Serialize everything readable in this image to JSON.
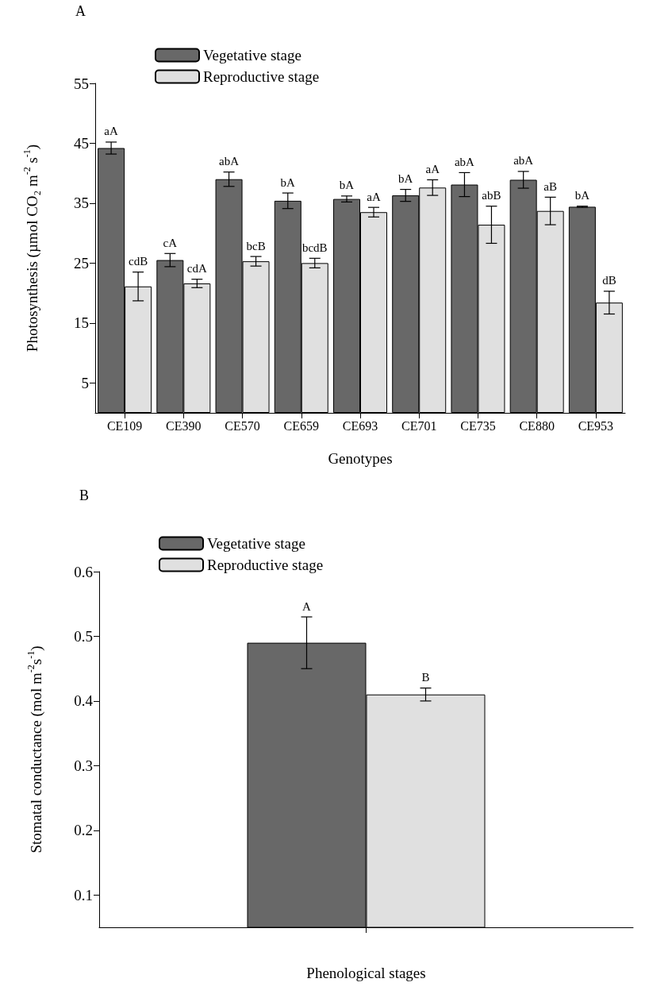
{
  "chart_data": [
    {
      "type": "bar",
      "title": "A",
      "xlabel": "Genotypes",
      "ylabel": "Photosynthesis (µmol CO₂ m$^{-2}$ s$^{-1}$)",
      "categories": [
        "CE109",
        "CE390",
        "CE570",
        "CE659",
        "CE693",
        "CE701",
        "CE735",
        "CE880",
        "CE953"
      ],
      "ylim": [
        0,
        55
      ],
      "yticks": [
        5,
        15,
        25,
        35,
        45,
        55
      ],
      "grid": false,
      "legend": "top left",
      "series": [
        {
          "name": "Vegetative stage",
          "color": "#686868",
          "values": [
            44.2,
            25.5,
            39.0,
            35.4,
            35.7,
            36.3,
            38.1,
            38.9,
            34.4
          ],
          "errors": [
            1.0,
            1.1,
            1.2,
            1.3,
            0.5,
            1.0,
            2.0,
            1.4,
            0.1
          ],
          "value_labels": [
            "aA",
            "cA",
            "abA",
            "bA",
            "bA",
            "bA",
            "abA",
            "abA",
            "bA"
          ]
        },
        {
          "name": "Reproductive stage",
          "color": "#e0e0e0",
          "values": [
            21.1,
            21.6,
            25.3,
            25.0,
            33.5,
            37.6,
            31.4,
            33.7,
            18.4
          ],
          "errors": [
            2.4,
            0.7,
            0.8,
            0.8,
            0.8,
            1.3,
            3.1,
            2.3,
            1.9
          ],
          "value_labels": [
            "cdB",
            "cdA",
            "bcB",
            "bcdB",
            "aA",
            "aA",
            "abB",
            "aB",
            "dB"
          ]
        }
      ]
    },
    {
      "type": "bar",
      "title": "B",
      "xlabel": "Phenological stages",
      "ylabel": "Stomatal conductance (mol m$^{-2}$s$^{-1}$)",
      "categories": [
        null
      ],
      "ylim": [
        0.05,
        0.6
      ],
      "yticks": [
        0.1,
        0.2,
        0.3,
        0.4,
        0.5,
        0.6
      ],
      "grid": false,
      "legend": "top left",
      "series": [
        {
          "name": "Vegetative stage",
          "color": "#686868",
          "values": [
            0.49
          ],
          "errors": [
            0.04
          ],
          "value_labels": [
            "A"
          ]
        },
        {
          "name": "Reproductive stage",
          "color": "#e0e0e0",
          "values": [
            0.41
          ],
          "errors": [
            0.01
          ],
          "value_labels": [
            "B"
          ]
        }
      ]
    }
  ]
}
